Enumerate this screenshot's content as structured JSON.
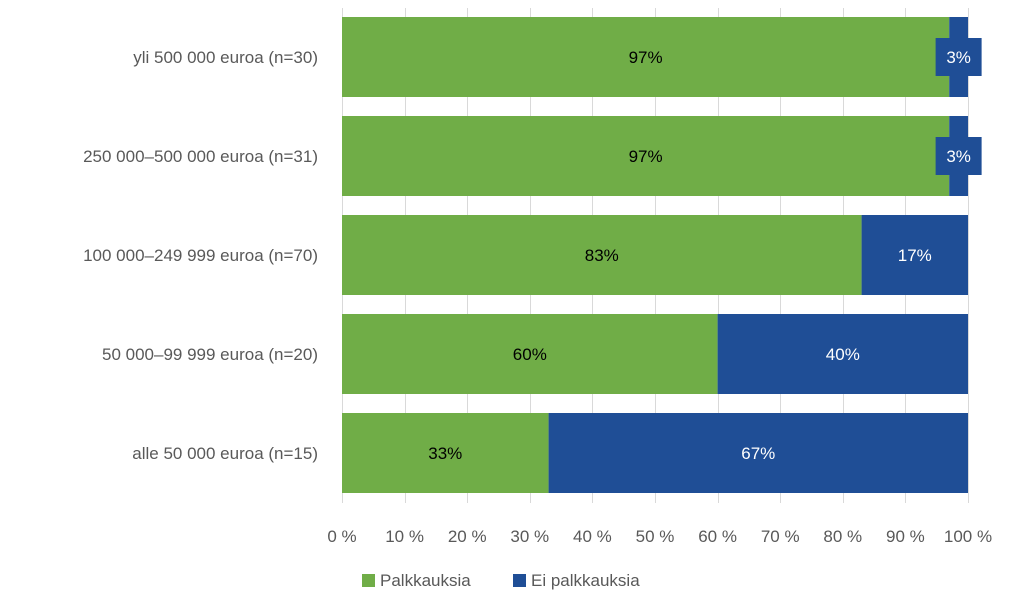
{
  "chart_data": {
    "type": "bar",
    "orientation": "horizontal",
    "stacked": "percent",
    "categories": [
      "yli 500 000 euroa (n=30)",
      "250 000–500 000 euroa (n=31)",
      "100 000–249 999 euroa (n=70)",
      "50 000–99 999 euroa (n=20)",
      "alle 50 000 euroa (n=15)"
    ],
    "series": [
      {
        "name": "Palkkauksia",
        "color": "#70ad47",
        "values": [
          97,
          97,
          83,
          60,
          33
        ],
        "labels": [
          "97%",
          "97%",
          "83%",
          "60%",
          "33%"
        ]
      },
      {
        "name": "Ei palkkauksia",
        "color": "#1f4e96",
        "values": [
          3,
          3,
          17,
          40,
          67
        ],
        "labels": [
          "3%",
          "3%",
          "17%",
          "40%",
          "67%"
        ]
      }
    ],
    "xlim": [
      0,
      100
    ],
    "xticks": [
      0,
      10,
      20,
      30,
      40,
      50,
      60,
      70,
      80,
      90,
      100
    ],
    "xtick_labels": [
      "0 %",
      "10 %",
      "20 %",
      "30 %",
      "40 %",
      "50 %",
      "60 %",
      "70 %",
      "80 %",
      "90 %",
      "100 %"
    ],
    "grid": true,
    "legend_position": "bottom",
    "title": "",
    "xlabel": "",
    "ylabel": ""
  }
}
